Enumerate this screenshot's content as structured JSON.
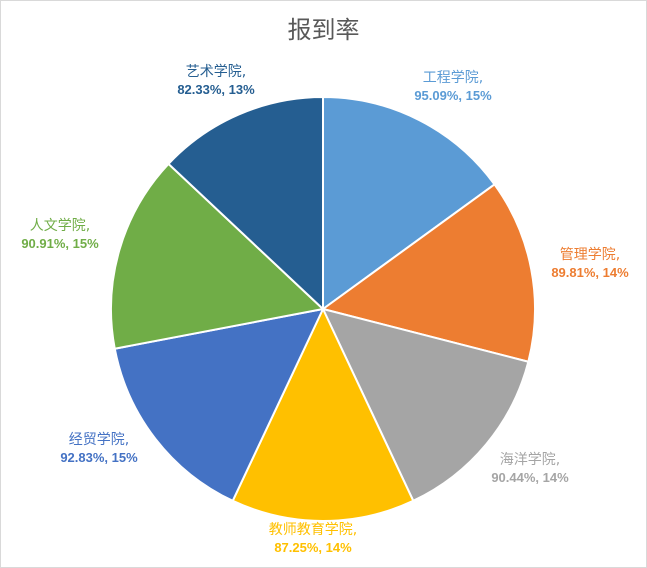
{
  "chart_data": {
    "type": "pie",
    "title": "报到率",
    "series": [
      {
        "name": "工程学院",
        "label_name": "工程学院,",
        "label_value": "95.09%, 15%",
        "rate": "95.09%",
        "share": 15,
        "color": "#5b9bd5"
      },
      {
        "name": "管理学院",
        "label_name": "管理学院,",
        "label_value": "89.81%, 14%",
        "rate": "89.81%",
        "share": 14,
        "color": "#ed7d31"
      },
      {
        "name": "海洋学院",
        "label_name": "海洋学院,",
        "label_value": "90.44%, 14%",
        "rate": "90.44%",
        "share": 14,
        "color": "#a5a5a5"
      },
      {
        "name": "教师教育学院",
        "label_name": "教师教育学院,",
        "label_value": "87.25%, 14%",
        "rate": "87.25%",
        "share": 14,
        "color": "#ffc000"
      },
      {
        "name": "经贸学院",
        "label_name": "经贸学院,",
        "label_value": "92.83%, 15%",
        "rate": "92.83%",
        "share": 15,
        "color": "#4472c4"
      },
      {
        "name": "人文学院",
        "label_name": "人文学院,",
        "label_value": "90.91%, 15%",
        "rate": "90.91%",
        "share": 15,
        "color": "#70ad47"
      },
      {
        "name": "艺术学院",
        "label_name": "艺术学院,",
        "label_value": "82.33%, 13%",
        "rate": "82.33%",
        "share": 13,
        "color": "#255e91"
      }
    ],
    "label_colors": [
      "#5b9bd5",
      "#ed7d31",
      "#a5a5a5",
      "#ffc000",
      "#4472c4",
      "#70ad47",
      "#255e91"
    ],
    "start": "12 o'clock, clockwise"
  }
}
